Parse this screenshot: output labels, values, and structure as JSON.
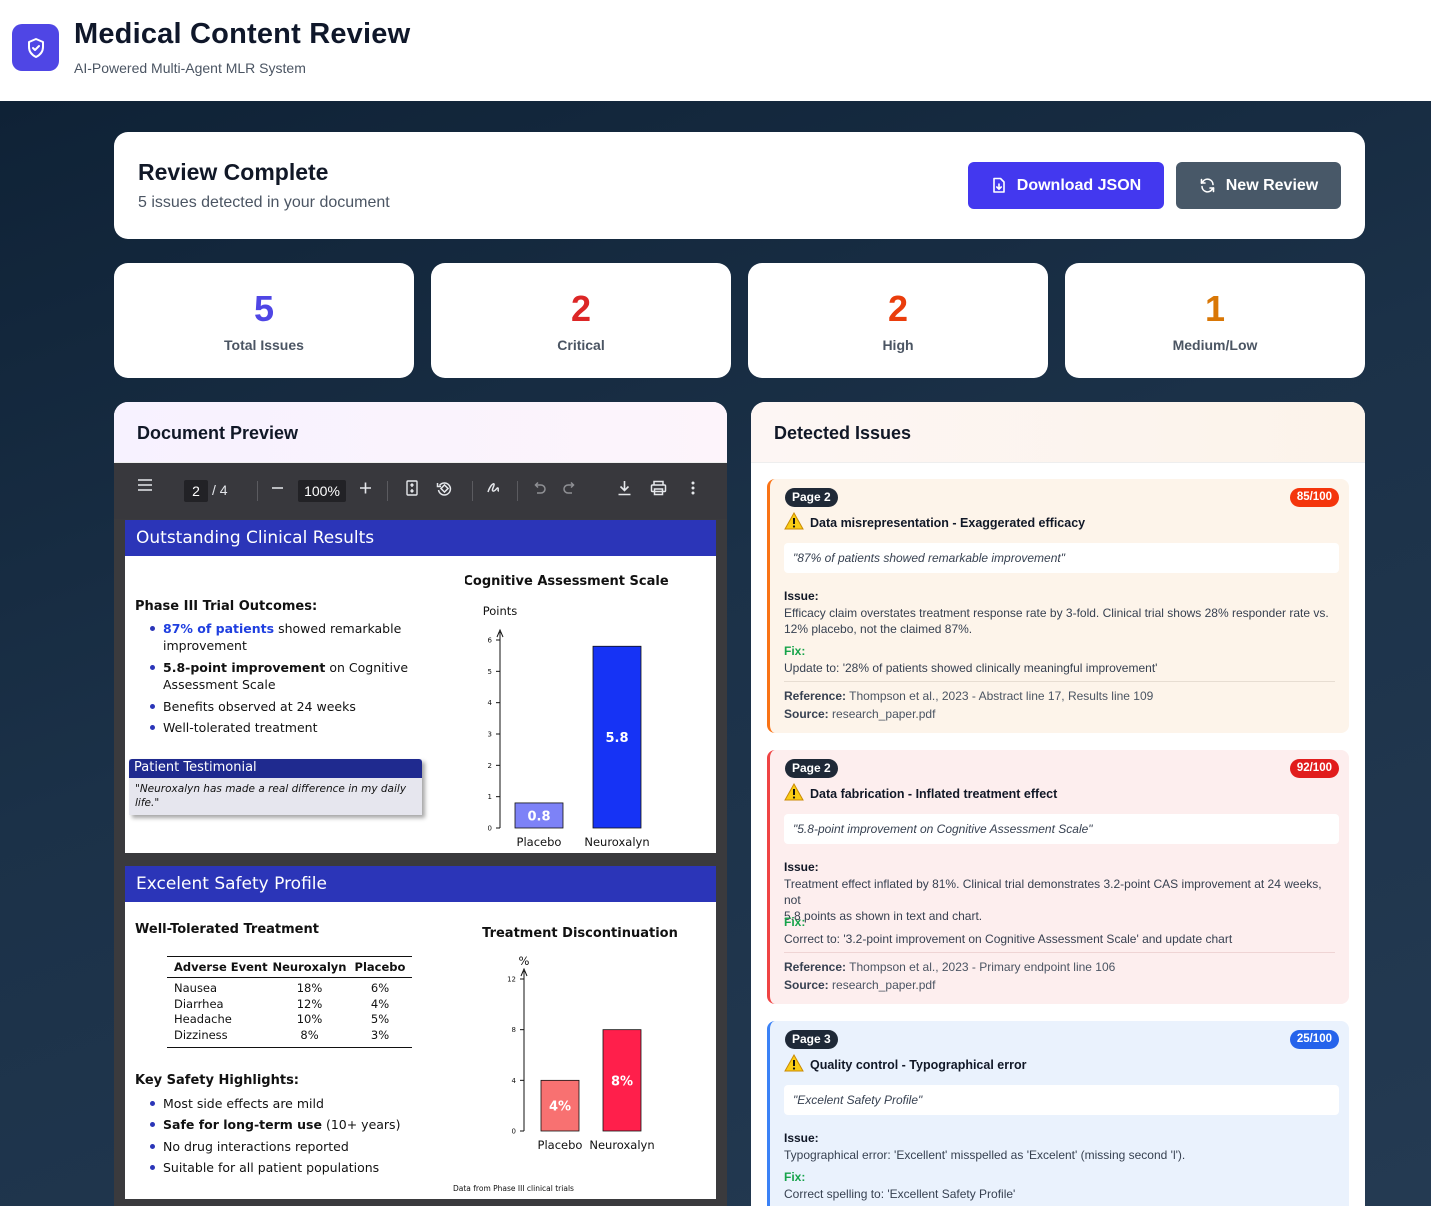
{
  "header": {
    "title": "Medical Content Review",
    "subtitle": "AI-Powered Multi-Agent MLR System"
  },
  "review": {
    "title": "Review Complete",
    "subtitle": "5 issues detected in your document",
    "download_label": "Download JSON",
    "new_review_label": "New Review"
  },
  "stats": [
    {
      "value": "5",
      "label": "Total Issues",
      "color": "#4f46e5"
    },
    {
      "value": "2",
      "label": "Critical",
      "color": "#dc2626"
    },
    {
      "value": "2",
      "label": "High",
      "color": "#ea3d0c"
    },
    {
      "value": "1",
      "label": "Medium/Low",
      "color": "#d97706"
    }
  ],
  "doc_panel": {
    "title": "Document Preview",
    "toolbar": {
      "page_current": "2",
      "page_total": "/ 4",
      "zoom": "100%"
    },
    "slide1": {
      "title": "Outstanding Clinical Results",
      "subheading": "Phase III Trial Outcomes:",
      "b1_highlight": "87% of patients",
      "b1_rest": " showed remarkable",
      "b1_cont": "improvement",
      "b2_bold": "5.8-point improvement",
      "b2_rest": " on Cognitive",
      "b2_cont": "Assessment Scale",
      "b3": "Benefits observed at 24 weeks",
      "b4": "Well-tolerated treatment",
      "testimonial_title": "Patient Testimonial",
      "testimonial_text": "\"Neuroxalyn has made a real difference in my daily life.\""
    },
    "slide2": {
      "title": "Excelent Safety Profile",
      "subheading": "Well-Tolerated Treatment",
      "table_headers": [
        "Adverse Event",
        "Neuroxalyn",
        "Placebo"
      ],
      "table_rows": [
        [
          "Nausea",
          "18%",
          "6%"
        ],
        [
          "Diarrhea",
          "12%",
          "4%"
        ],
        [
          "Headache",
          "10%",
          "5%"
        ],
        [
          "Dizziness",
          "8%",
          "3%"
        ]
      ],
      "highlights_heading": "Key Safety Highlights:",
      "h1": "Most side effects are mild",
      "h2_bold": "Safe for long-term use",
      "h2_rest": " (10+ years)",
      "h3": "No drug interactions reported",
      "h4": "Suitable for all patient populations",
      "footnote": "Data from Phase III clinical trials"
    }
  },
  "chart_data": [
    {
      "type": "bar",
      "title": "Cognitive Assessment Scale",
      "ylabel": "Points",
      "categories": [
        "Placebo",
        "Neuroxalyn"
      ],
      "values": [
        0.8,
        5.8
      ],
      "value_labels": [
        "0.8",
        "5.8"
      ],
      "colors": [
        "#7d82f7",
        "#1633f5"
      ],
      "ylim": [
        0,
        6
      ],
      "yticks": [
        "0",
        "1",
        "2",
        "3",
        "4",
        "5",
        "6"
      ]
    },
    {
      "type": "bar",
      "title": "Treatment Discontinuation",
      "ylabel": "%",
      "categories": [
        "Placebo",
        "Neuroxalyn"
      ],
      "values": [
        4,
        8
      ],
      "value_labels": [
        "4%",
        "8%"
      ],
      "colors": [
        "#f87171",
        "#ff1f4b"
      ],
      "ylim": [
        0,
        12
      ],
      "yticks": [
        "0",
        "4",
        "8",
        "12"
      ]
    }
  ],
  "issues_panel": {
    "title": "Detected Issues",
    "issue_label": "Issue:",
    "fix_label": "Fix:",
    "reference_label": "Reference:",
    "source_label": "Source:",
    "issues": [
      {
        "page": "Page 2",
        "score": "85/100",
        "type": "Data misrepresentation - Exaggerated efficacy",
        "quote": "\"87% of patients showed remarkable improvement\"",
        "issue_line1": "Efficacy claim overstates treatment response rate by 3-fold. Clinical trial shows 28% responder rate vs.",
        "issue_line2": "12% placebo, not the claimed 87%.",
        "fix": "Update to: '28% of patients showed clinically meaningful improvement'",
        "reference": "Thompson et al., 2023 - Abstract line 17, Results line 109",
        "source": "research_paper.pdf"
      },
      {
        "page": "Page 2",
        "score": "92/100",
        "type": "Data fabrication - Inflated treatment effect",
        "quote": "\"5.8-point improvement on Cognitive Assessment Scale\"",
        "issue_line1": "Treatment effect inflated by 81%. Clinical trial demonstrates 3.2-point CAS improvement at 24 weeks, not",
        "issue_line2": "5.8 points as shown in text and chart.",
        "fix": "Correct to: '3.2-point improvement on Cognitive Assessment Scale' and update chart",
        "reference": "Thompson et al., 2023 - Primary endpoint line 106",
        "source": "research_paper.pdf"
      },
      {
        "page": "Page 3",
        "score": "25/100",
        "type": "Quality control - Typographical error",
        "quote": "\"Excelent Safety Profile\"",
        "issue_line1": "Typographical error: 'Excellent' misspelled as 'Excelent' (missing second 'l').",
        "fix": "Correct spelling to: 'Excellent Safety Profile'"
      }
    ]
  }
}
